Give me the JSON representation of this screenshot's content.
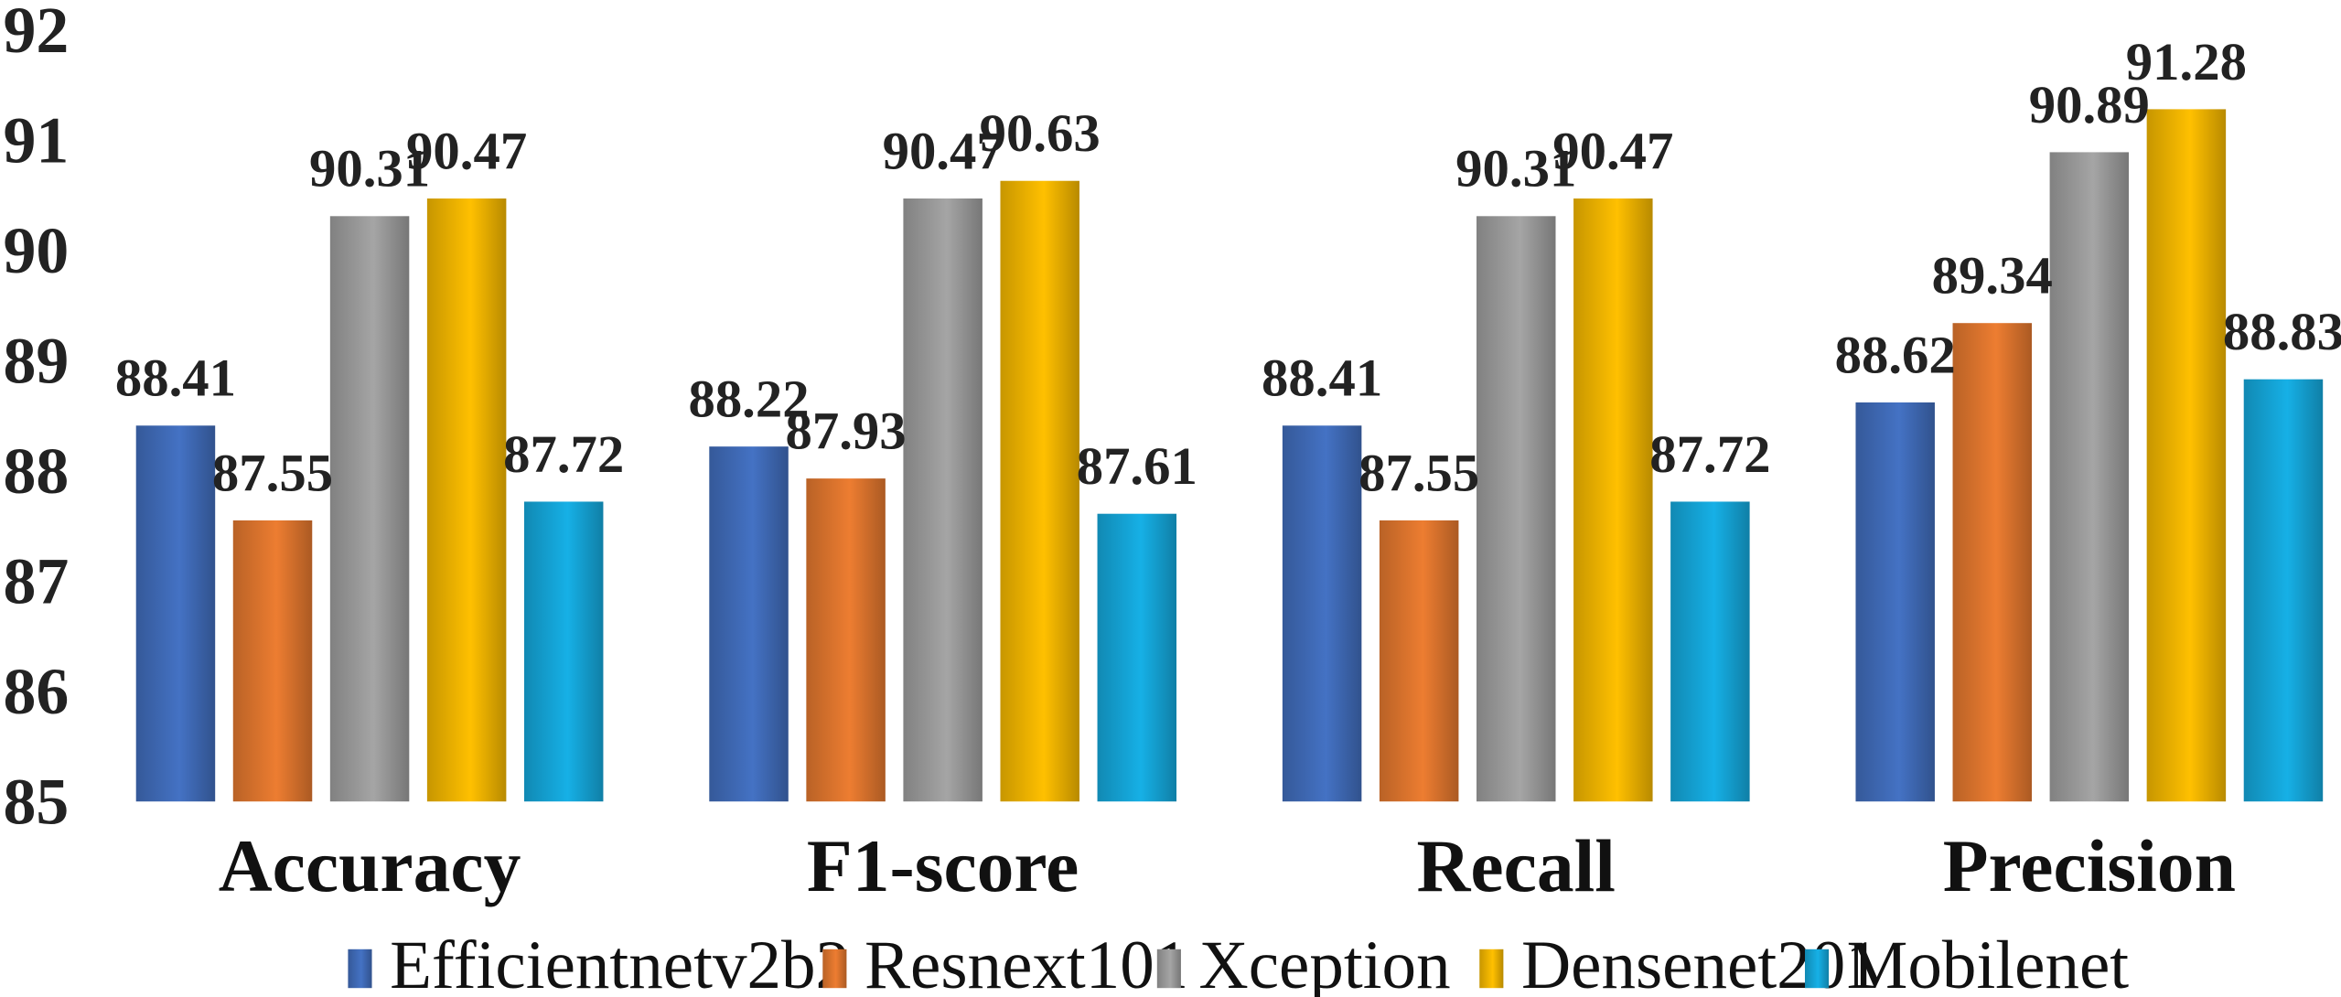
{
  "chart_data": {
    "type": "bar",
    "categories": [
      "Accuracy",
      "F1-score",
      "Recall",
      "Precision"
    ],
    "series": [
      {
        "name": "Efficientnetv2b2",
        "color": "#4472c4",
        "values": [
          88.41,
          88.22,
          88.41,
          88.62
        ],
        "labels": [
          "88.41",
          "88.22",
          "88.41",
          "88.62"
        ]
      },
      {
        "name": "Resnext101",
        "color": "#ed7d31",
        "values": [
          87.55,
          87.93,
          87.55,
          89.34
        ],
        "labels": [
          "87.55",
          "87.93",
          "87.55",
          "89.34"
        ]
      },
      {
        "name": "Xception",
        "color": "#a5a5a5",
        "values": [
          90.31,
          90.47,
          90.31,
          90.89
        ],
        "labels": [
          "90.31",
          "90.47",
          "90.31",
          "90.89"
        ]
      },
      {
        "name": "Densenet201",
        "color": "#ffc000",
        "values": [
          90.47,
          90.63,
          90.47,
          91.28
        ],
        "labels": [
          "90.47",
          "90.63",
          "90.47",
          "91.28"
        ]
      },
      {
        "name": "Mobilenet",
        "color": "#16b0e6",
        "values": [
          87.72,
          87.61,
          87.72,
          88.83
        ],
        "labels": [
          "87.72",
          "87.61",
          "87.72",
          "88.83"
        ]
      }
    ],
    "ylim": [
      85,
      92
    ],
    "yticks": [
      "85",
      "86",
      "87",
      "88",
      "89",
      "90",
      "91",
      "92"
    ],
    "grid": false,
    "legend_position": "bottom"
  }
}
